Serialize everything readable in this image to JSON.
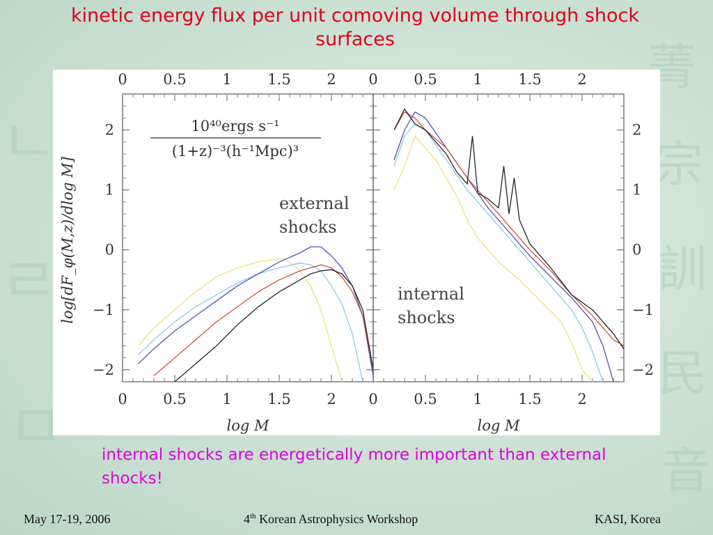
{
  "slide": {
    "title": "kinetic energy flux per unit comoving volume through shock surfaces",
    "note": "internal shocks are energetically more important than external shocks!",
    "footer": {
      "date": "May 17-19, 2006",
      "workshop_num": "4",
      "workshop_sup": "th",
      "workshop_rest": " Korean Astrophysics Workshop",
      "venue": "KASI, Korea"
    }
  },
  "chart_data": [
    {
      "type": "line",
      "panel": "left",
      "annotation": [
        "external",
        "shocks"
      ],
      "units_label": {
        "numerator": "10⁴⁰ergs s⁻¹",
        "denominator": "(1+z)⁻³(h⁻¹Mpc)³"
      },
      "xlabel": "log M",
      "ylabel": "log[dF_φ(M,z)/dlog M]",
      "xlim": [
        0,
        2.4
      ],
      "ylim": [
        -2.2,
        2.6
      ],
      "xticks": [
        "0",
        "0.5",
        "1",
        "1.5",
        "2"
      ],
      "yticks": [
        "2",
        "1",
        "0",
        "−1",
        "−2"
      ],
      "series": [
        {
          "color": "#e8e070",
          "x": [
            0.15,
            0.3,
            0.5,
            0.7,
            0.9,
            1.1,
            1.3,
            1.5,
            1.6,
            1.7,
            1.8,
            1.9,
            2.0,
            2.1
          ],
          "y": [
            -1.6,
            -1.3,
            -1.0,
            -0.7,
            -0.45,
            -0.3,
            -0.2,
            -0.15,
            -0.2,
            -0.35,
            -0.6,
            -1.0,
            -1.6,
            -2.2
          ]
        },
        {
          "color": "#88c8e8",
          "x": [
            0.15,
            0.3,
            0.5,
            0.7,
            0.9,
            1.1,
            1.3,
            1.5,
            1.7,
            1.8,
            1.9,
            2.0,
            2.1,
            2.2,
            2.3
          ],
          "y": [
            -1.75,
            -1.5,
            -1.2,
            -0.95,
            -0.75,
            -0.55,
            -0.4,
            -0.3,
            -0.22,
            -0.25,
            -0.35,
            -0.6,
            -0.9,
            -1.4,
            -2.2
          ]
        },
        {
          "color": "#5050b0",
          "x": [
            0.15,
            0.3,
            0.5,
            0.7,
            0.9,
            1.1,
            1.3,
            1.5,
            1.7,
            1.8,
            1.9,
            2.0,
            2.1,
            2.2,
            2.3,
            2.4
          ],
          "y": [
            -1.9,
            -1.65,
            -1.35,
            -1.1,
            -0.85,
            -0.6,
            -0.4,
            -0.2,
            -0.05,
            0.05,
            0.05,
            -0.1,
            -0.3,
            -0.6,
            -1.1,
            -2.1
          ]
        },
        {
          "color": "#d05040",
          "x": [
            0.3,
            0.5,
            0.7,
            0.9,
            1.1,
            1.3,
            1.5,
            1.7,
            1.9,
            2.0,
            2.1,
            2.2,
            2.3,
            2.4
          ],
          "y": [
            -2.1,
            -1.8,
            -1.5,
            -1.2,
            -0.95,
            -0.7,
            -0.5,
            -0.35,
            -0.25,
            -0.3,
            -0.45,
            -0.7,
            -1.1,
            -2.0
          ]
        },
        {
          "color": "#222222",
          "x": [
            0.5,
            0.7,
            0.9,
            1.1,
            1.3,
            1.5,
            1.7,
            1.8,
            1.9,
            2.0,
            2.1,
            2.2,
            2.3,
            2.4
          ],
          "y": [
            -2.2,
            -1.9,
            -1.6,
            -1.25,
            -0.95,
            -0.7,
            -0.5,
            -0.4,
            -0.35,
            -0.33,
            -0.4,
            -0.6,
            -1.0,
            -2.0
          ]
        }
      ]
    },
    {
      "type": "line",
      "panel": "right",
      "annotation": [
        "internal",
        "shocks"
      ],
      "xlabel": "log M",
      "xlim": [
        0,
        2.4
      ],
      "ylim": [
        -2.2,
        2.6
      ],
      "xticks": [
        "0",
        "0.5",
        "1",
        "1.5",
        "2"
      ],
      "yticks": [
        "2",
        "1",
        "0",
        "−1",
        "−2"
      ],
      "series": [
        {
          "color": "#e8e070",
          "x": [
            0.2,
            0.3,
            0.4,
            0.5,
            0.6,
            0.7,
            0.8,
            0.9,
            1.0,
            1.2,
            1.4,
            1.6,
            1.8,
            1.9,
            2.0,
            2.1
          ],
          "y": [
            1.0,
            1.4,
            1.9,
            1.7,
            1.5,
            1.2,
            0.9,
            0.5,
            0.2,
            -0.2,
            -0.5,
            -0.85,
            -1.2,
            -1.55,
            -2.0,
            -2.2
          ]
        },
        {
          "color": "#88c8e8",
          "x": [
            0.2,
            0.3,
            0.4,
            0.5,
            0.7,
            0.9,
            1.1,
            1.3,
            1.5,
            1.7,
            1.9,
            2.0,
            2.1,
            2.2
          ],
          "y": [
            1.4,
            1.9,
            2.1,
            2.0,
            1.5,
            1.0,
            0.6,
            0.2,
            -0.2,
            -0.6,
            -1.0,
            -1.3,
            -1.7,
            -2.2
          ]
        },
        {
          "color": "#5050b0",
          "x": [
            0.2,
            0.3,
            0.4,
            0.5,
            0.7,
            0.9,
            1.1,
            1.3,
            1.5,
            1.7,
            1.9,
            2.1,
            2.2,
            2.3
          ],
          "y": [
            1.5,
            2.0,
            2.3,
            2.2,
            1.7,
            1.2,
            0.7,
            0.3,
            -0.1,
            -0.45,
            -0.8,
            -1.2,
            -1.6,
            -2.2
          ]
        },
        {
          "color": "#d05040",
          "x": [
            0.2,
            0.3,
            0.4,
            0.5,
            0.7,
            0.9,
            1.1,
            1.3,
            1.5,
            1.7,
            1.9,
            2.1,
            2.3,
            2.4
          ],
          "y": [
            2.0,
            2.3,
            2.2,
            2.0,
            1.7,
            1.2,
            0.8,
            0.4,
            0.0,
            -0.35,
            -0.75,
            -1.1,
            -1.5,
            -1.6
          ]
        },
        {
          "color": "#222222",
          "x": [
            0.2,
            0.3,
            0.4,
            0.5,
            0.6,
            0.7,
            0.8,
            0.9,
            0.95,
            1.0,
            1.1,
            1.2,
            1.25,
            1.3,
            1.35,
            1.4,
            1.5,
            1.7,
            1.9,
            2.1,
            2.3,
            2.4
          ],
          "y": [
            2.0,
            2.35,
            2.1,
            2.0,
            1.8,
            1.6,
            1.3,
            1.1,
            1.9,
            0.95,
            0.85,
            0.7,
            1.4,
            0.6,
            1.2,
            0.5,
            0.1,
            -0.3,
            -0.75,
            -1.0,
            -1.4,
            -1.65
          ]
        }
      ]
    }
  ]
}
